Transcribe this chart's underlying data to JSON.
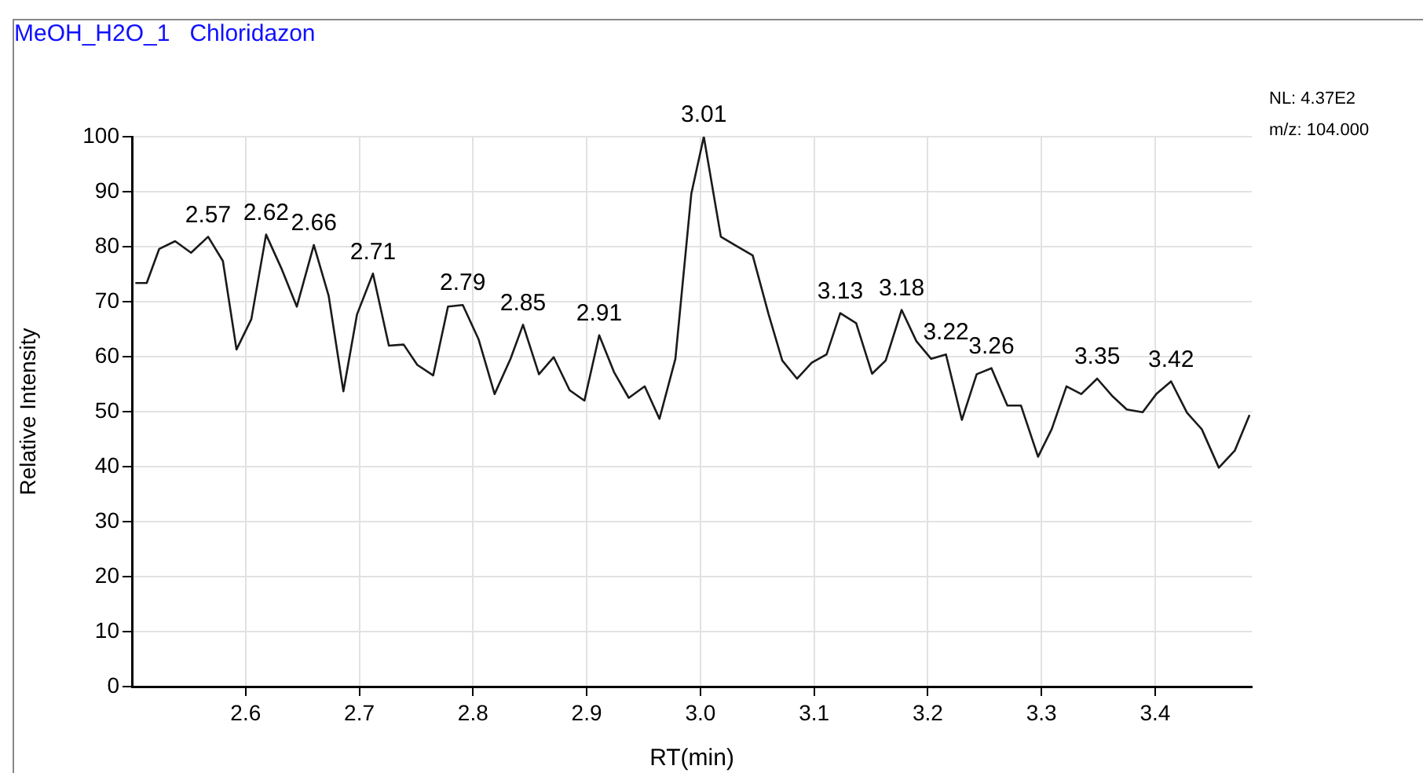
{
  "chart_data": {
    "type": "line",
    "title": "MeOH_H2O_1   Chloridazon",
    "xlabel": "RT(min)",
    "ylabel": "Relative Intensity",
    "x": [
      2.503,
      2.513,
      2.524,
      2.538,
      2.552,
      2.567,
      2.58,
      2.592,
      2.605,
      2.618,
      2.632,
      2.645,
      2.66,
      2.673,
      2.686,
      2.698,
      2.712,
      2.726,
      2.739,
      2.751,
      2.765,
      2.778,
      2.791,
      2.805,
      2.819,
      2.833,
      2.844,
      2.858,
      2.871,
      2.885,
      2.898,
      2.911,
      2.924,
      2.937,
      2.951,
      2.964,
      2.978,
      2.992,
      3.003,
      3.018,
      3.032,
      3.046,
      3.06,
      3.072,
      3.085,
      3.098,
      3.111,
      3.123,
      3.137,
      3.151,
      3.163,
      3.177,
      3.19,
      3.203,
      3.216,
      3.23,
      3.243,
      3.256,
      3.27,
      3.282,
      3.297,
      3.309,
      3.322,
      3.335,
      3.349,
      3.362,
      3.375,
      3.389,
      3.401,
      3.414,
      3.428,
      3.441,
      3.456,
      3.47,
      3.483
    ],
    "series": [
      {
        "color": "#1a1a1a",
        "values": [
          73.4,
          73.4,
          79.6,
          81.0,
          78.9,
          81.8,
          77.4,
          61.3,
          66.8,
          82.2,
          75.8,
          69.1,
          80.3,
          71.1,
          53.7,
          67.7,
          75.1,
          62.0,
          62.2,
          58.5,
          56.6,
          69.1,
          69.4,
          63.1,
          53.2,
          59.6,
          65.8,
          56.8,
          59.9,
          53.9,
          52.0,
          63.9,
          57.2,
          52.5,
          54.6,
          48.7,
          59.6,
          89.6,
          100,
          81.8,
          80.1,
          78.4,
          67.7,
          59.3,
          56.0,
          58.9,
          60.4,
          67.9,
          66.1,
          56.9,
          59.3,
          68.5,
          62.8,
          59.6,
          60.4,
          48.5,
          56.8,
          57.9,
          51.1,
          51.1,
          41.8,
          46.8,
          54.6,
          53.2,
          56.0,
          52.9,
          50.4,
          49.9,
          53.2,
          55.5,
          49.8,
          46.8,
          39.8,
          42.9,
          49.4
        ]
      }
    ],
    "xlim": [
      2.5,
      3.485
    ],
    "xticks": [
      2.6,
      2.7,
      2.8,
      2.9,
      {
        "value": 3,
        "label": "3.0"
      },
      3.1,
      3.2,
      3.3,
      3.4
    ],
    "ylim": [
      0,
      100
    ],
    "yticks": [
      0,
      10,
      20,
      30,
      40,
      50,
      60,
      70,
      80,
      90,
      100
    ],
    "grid": true,
    "legend": false,
    "marker": "none",
    "line_style": "solid",
    "annotations": [
      {
        "text": "2.57",
        "x": 2.567,
        "y": 81.8
      },
      {
        "text": "2.62",
        "x": 2.618,
        "y": 82.2
      },
      {
        "text": "2.66",
        "x": 2.66,
        "y": 80.3
      },
      {
        "text": "2.71",
        "x": 2.712,
        "y": 75.1
      },
      {
        "text": "2.79",
        "x": 2.791,
        "y": 69.4
      },
      {
        "text": "2.85",
        "x": 2.844,
        "y": 65.8
      },
      {
        "text": "2.91",
        "x": 2.911,
        "y": 63.9
      },
      {
        "text": "3.01",
        "x": 3.003,
        "y": 100
      },
      {
        "text": "3.13",
        "x": 3.123,
        "y": 67.9
      },
      {
        "text": "3.18",
        "x": 3.177,
        "y": 68.5
      },
      {
        "text": "3.22",
        "x": 3.216,
        "y": 60.4
      },
      {
        "text": "3.26",
        "x": 3.256,
        "y": 57.9
      },
      {
        "text": "3.35",
        "x": 3.349,
        "y": 56.0
      },
      {
        "text": "3.42",
        "x": 3.414,
        "y": 55.5
      },
      "NL: 4.37E2",
      "m/z: 104.000"
    ]
  }
}
